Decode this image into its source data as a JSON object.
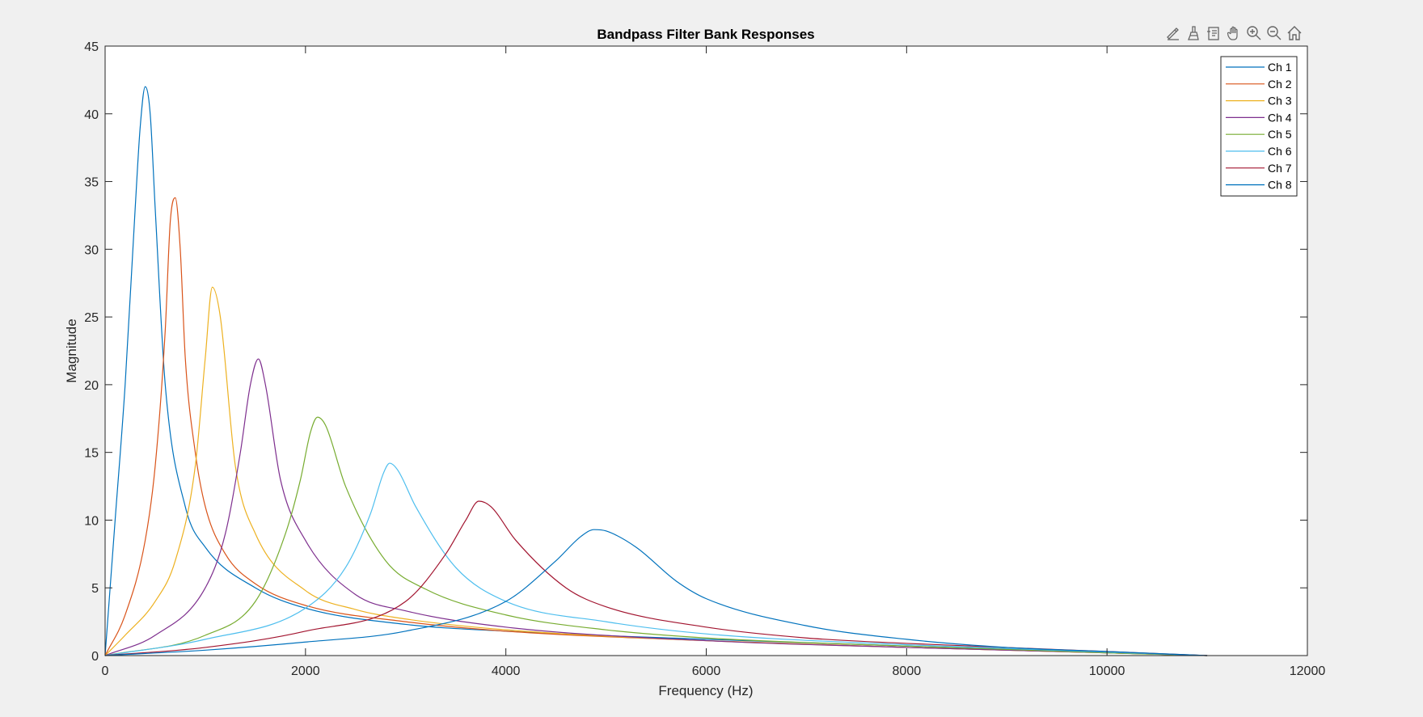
{
  "toolbar": {
    "buttons": [
      {
        "name": "edit-annotate-icon"
      },
      {
        "name": "brush-icon"
      },
      {
        "name": "datatip-icon"
      },
      {
        "name": "pan-hand-icon"
      },
      {
        "name": "zoom-in-icon"
      },
      {
        "name": "zoom-out-icon"
      },
      {
        "name": "home-icon"
      }
    ]
  },
  "chart_data": {
    "type": "line",
    "title": "Bandpass Filter Bank Responses",
    "xlabel": "Frequency (Hz)",
    "ylabel": "Magnitude",
    "xlim": [
      0,
      12000
    ],
    "ylim": [
      0,
      45
    ],
    "xticks": [
      0,
      2000,
      4000,
      6000,
      8000,
      10000,
      12000
    ],
    "yticks": [
      0,
      5,
      10,
      15,
      20,
      25,
      30,
      35,
      40,
      45
    ],
    "grid": false,
    "legend": "top-right",
    "series": [
      {
        "name": "Ch 1",
        "color": "#0072BD",
        "x": [
          0,
          100,
          200,
          300,
          350,
          400,
          450,
          500,
          600,
          800,
          1000,
          1500,
          2000,
          3000,
          4000,
          6000,
          8000,
          10000,
          11000
        ],
        "y": [
          0,
          10,
          20,
          33,
          39,
          42,
          40,
          33,
          20,
          11,
          8,
          5,
          3.5,
          2.3,
          1.8,
          1.2,
          0.7,
          0.25,
          0
        ]
      },
      {
        "name": "Ch 2",
        "color": "#D95319",
        "x": [
          0,
          200,
          400,
          500,
          600,
          650,
          700,
          750,
          800,
          900,
          1000,
          1200,
          1500,
          2000,
          3000,
          4000,
          6000,
          8000,
          10000,
          11000
        ],
        "y": [
          0,
          3,
          8.5,
          14,
          24,
          32,
          33.8,
          30,
          22,
          15,
          11,
          7.5,
          5.3,
          3.7,
          2.5,
          1.8,
          1.1,
          0.6,
          0.2,
          0
        ]
      },
      {
        "name": "Ch 3",
        "color": "#EDB120",
        "x": [
          0,
          200,
          500,
          700,
          900,
          1000,
          1070,
          1150,
          1300,
          1500,
          2000,
          2500,
          3000,
          4000,
          6000,
          8000,
          10000,
          11000
        ],
        "y": [
          0,
          1.5,
          4,
          7,
          14,
          22,
          27.2,
          25,
          14,
          9,
          4.8,
          3.4,
          2.7,
          1.9,
          1.1,
          0.6,
          0.2,
          0
        ]
      },
      {
        "name": "Ch 4",
        "color": "#7E2F8E",
        "x": [
          0,
          500,
          1000,
          1200,
          1350,
          1450,
          1530,
          1600,
          1750,
          2000,
          2500,
          3000,
          4000,
          6000,
          8000,
          10000,
          11000
        ],
        "y": [
          0,
          1.5,
          5,
          9,
          15,
          20,
          21.9,
          20,
          13,
          8.5,
          4.5,
          3.3,
          2.1,
          1.1,
          0.6,
          0.2,
          0
        ]
      },
      {
        "name": "Ch 5",
        "color": "#77AC30",
        "x": [
          0,
          1000,
          1500,
          1800,
          1950,
          2050,
          2120,
          2200,
          2400,
          2800,
          3200,
          4000,
          5000,
          6000,
          8000,
          10000,
          11000
        ],
        "y": [
          0,
          1.5,
          4,
          9,
          13,
          16.5,
          17.6,
          17,
          12.5,
          7,
          4.9,
          3,
          1.9,
          1.3,
          0.7,
          0.2,
          0
        ]
      },
      {
        "name": "Ch 6",
        "color": "#4DBEEE",
        "x": [
          0,
          1000,
          2000,
          2400,
          2650,
          2780,
          2840,
          2920,
          3100,
          3500,
          4000,
          5000,
          6000,
          8000,
          10000,
          11000
        ],
        "y": [
          0,
          1.2,
          3.5,
          6.5,
          10.5,
          13.5,
          14.2,
          13.7,
          11,
          6.5,
          4,
          2.5,
          1.6,
          0.8,
          0.25,
          0
        ]
      },
      {
        "name": "Ch 7",
        "color": "#A2142F",
        "x": [
          0,
          1000,
          2000,
          3000,
          3400,
          3600,
          3730,
          3850,
          4100,
          4600,
          5000,
          6000,
          7000,
          8000,
          10000,
          11000
        ],
        "y": [
          0,
          0.6,
          1.8,
          4,
          7.5,
          10,
          11.4,
          11,
          8.5,
          5,
          3.6,
          2.1,
          1.3,
          0.9,
          0.3,
          0
        ]
      },
      {
        "name": "Ch 8",
        "color": "#0072BD",
        "x": [
          0,
          1000,
          2000,
          3000,
          4000,
          4500,
          4750,
          4880,
          5000,
          5300,
          5700,
          6000,
          7000,
          8000,
          9000,
          10000,
          11000
        ],
        "y": [
          0,
          0.4,
          1,
          1.8,
          4,
          7,
          8.8,
          9.3,
          9.2,
          8,
          5.5,
          4.2,
          2.2,
          1.2,
          0.6,
          0.3,
          0
        ]
      }
    ]
  }
}
